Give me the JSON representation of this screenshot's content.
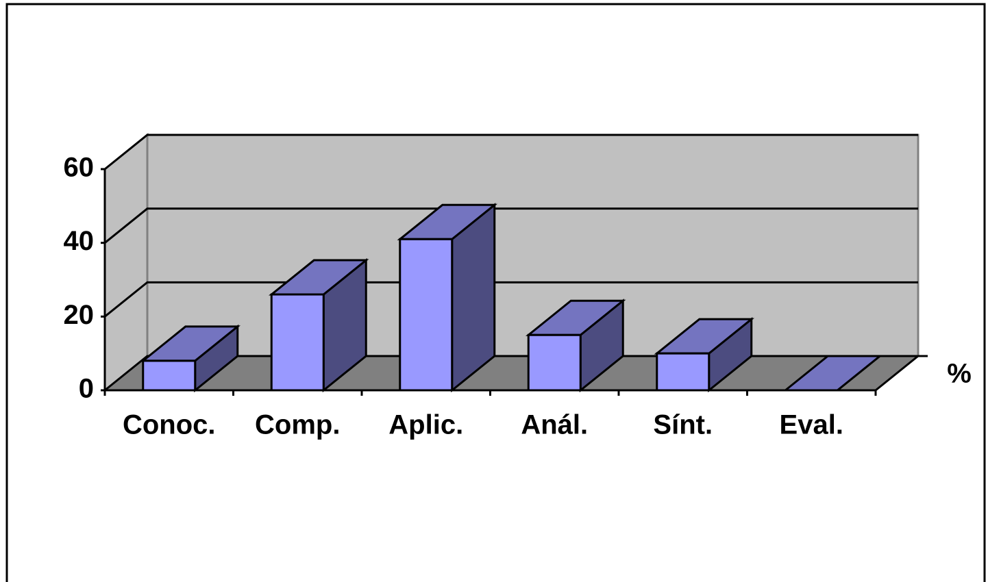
{
  "chart_data": {
    "type": "bar3d",
    "categories": [
      "Conoc.",
      "Comp.",
      "Aplic.",
      "Anál.",
      "Sínt.",
      "Eval."
    ],
    "series": [
      {
        "name": "%",
        "color": "#9999ff",
        "values": [
          8,
          26,
          41,
          15,
          10,
          0
        ]
      }
    ],
    "ylim": [
      0,
      60
    ],
    "yticks": [
      0,
      20,
      40,
      60
    ],
    "grid": true
  }
}
